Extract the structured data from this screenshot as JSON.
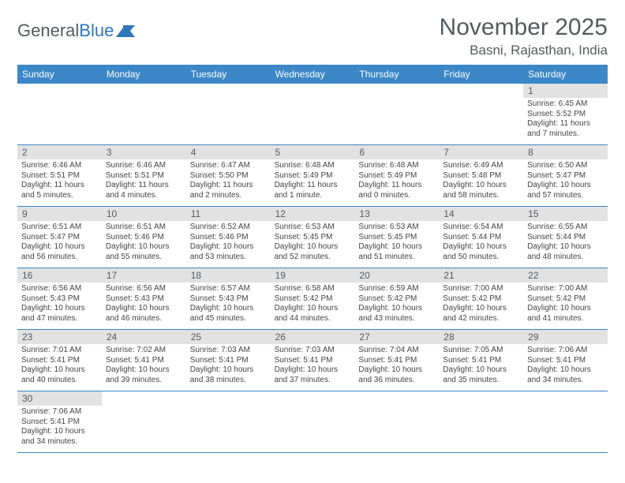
{
  "logo": {
    "text1": "General",
    "text2": "Blue"
  },
  "title": "November 2025",
  "location": "Basni, Rajasthan, India",
  "weekdays": [
    "Sunday",
    "Monday",
    "Tuesday",
    "Wednesday",
    "Thursday",
    "Friday",
    "Saturday"
  ],
  "colors": {
    "header_bg": "#3b87c8",
    "daynum_bg": "#e2e2e2",
    "text": "#555a5f"
  },
  "weeks": [
    [
      {
        "empty": true
      },
      {
        "empty": true
      },
      {
        "empty": true
      },
      {
        "empty": true
      },
      {
        "empty": true
      },
      {
        "empty": true
      },
      {
        "num": "1",
        "sunrise": "6:45 AM",
        "sunset": "5:52 PM",
        "daylight": "11 hours and 7 minutes."
      }
    ],
    [
      {
        "num": "2",
        "sunrise": "6:46 AM",
        "sunset": "5:51 PM",
        "daylight": "11 hours and 5 minutes."
      },
      {
        "num": "3",
        "sunrise": "6:46 AM",
        "sunset": "5:51 PM",
        "daylight": "11 hours and 4 minutes."
      },
      {
        "num": "4",
        "sunrise": "6:47 AM",
        "sunset": "5:50 PM",
        "daylight": "11 hours and 2 minutes."
      },
      {
        "num": "5",
        "sunrise": "6:48 AM",
        "sunset": "5:49 PM",
        "daylight": "11 hours and 1 minute."
      },
      {
        "num": "6",
        "sunrise": "6:48 AM",
        "sunset": "5:49 PM",
        "daylight": "11 hours and 0 minutes."
      },
      {
        "num": "7",
        "sunrise": "6:49 AM",
        "sunset": "5:48 PM",
        "daylight": "10 hours and 58 minutes."
      },
      {
        "num": "8",
        "sunrise": "6:50 AM",
        "sunset": "5:47 PM",
        "daylight": "10 hours and 57 minutes."
      }
    ],
    [
      {
        "num": "9",
        "sunrise": "6:51 AM",
        "sunset": "5:47 PM",
        "daylight": "10 hours and 56 minutes."
      },
      {
        "num": "10",
        "sunrise": "6:51 AM",
        "sunset": "5:46 PM",
        "daylight": "10 hours and 55 minutes."
      },
      {
        "num": "11",
        "sunrise": "6:52 AM",
        "sunset": "5:46 PM",
        "daylight": "10 hours and 53 minutes."
      },
      {
        "num": "12",
        "sunrise": "6:53 AM",
        "sunset": "5:45 PM",
        "daylight": "10 hours and 52 minutes."
      },
      {
        "num": "13",
        "sunrise": "6:53 AM",
        "sunset": "5:45 PM",
        "daylight": "10 hours and 51 minutes."
      },
      {
        "num": "14",
        "sunrise": "6:54 AM",
        "sunset": "5:44 PM",
        "daylight": "10 hours and 50 minutes."
      },
      {
        "num": "15",
        "sunrise": "6:55 AM",
        "sunset": "5:44 PM",
        "daylight": "10 hours and 48 minutes."
      }
    ],
    [
      {
        "num": "16",
        "sunrise": "6:56 AM",
        "sunset": "5:43 PM",
        "daylight": "10 hours and 47 minutes."
      },
      {
        "num": "17",
        "sunrise": "6:56 AM",
        "sunset": "5:43 PM",
        "daylight": "10 hours and 46 minutes."
      },
      {
        "num": "18",
        "sunrise": "6:57 AM",
        "sunset": "5:43 PM",
        "daylight": "10 hours and 45 minutes."
      },
      {
        "num": "19",
        "sunrise": "6:58 AM",
        "sunset": "5:42 PM",
        "daylight": "10 hours and 44 minutes."
      },
      {
        "num": "20",
        "sunrise": "6:59 AM",
        "sunset": "5:42 PM",
        "daylight": "10 hours and 43 minutes."
      },
      {
        "num": "21",
        "sunrise": "7:00 AM",
        "sunset": "5:42 PM",
        "daylight": "10 hours and 42 minutes."
      },
      {
        "num": "22",
        "sunrise": "7:00 AM",
        "sunset": "5:42 PM",
        "daylight": "10 hours and 41 minutes."
      }
    ],
    [
      {
        "num": "23",
        "sunrise": "7:01 AM",
        "sunset": "5:41 PM",
        "daylight": "10 hours and 40 minutes."
      },
      {
        "num": "24",
        "sunrise": "7:02 AM",
        "sunset": "5:41 PM",
        "daylight": "10 hours and 39 minutes."
      },
      {
        "num": "25",
        "sunrise": "7:03 AM",
        "sunset": "5:41 PM",
        "daylight": "10 hours and 38 minutes."
      },
      {
        "num": "26",
        "sunrise": "7:03 AM",
        "sunset": "5:41 PM",
        "daylight": "10 hours and 37 minutes."
      },
      {
        "num": "27",
        "sunrise": "7:04 AM",
        "sunset": "5:41 PM",
        "daylight": "10 hours and 36 minutes."
      },
      {
        "num": "28",
        "sunrise": "7:05 AM",
        "sunset": "5:41 PM",
        "daylight": "10 hours and 35 minutes."
      },
      {
        "num": "29",
        "sunrise": "7:06 AM",
        "sunset": "5:41 PM",
        "daylight": "10 hours and 34 minutes."
      }
    ],
    [
      {
        "num": "30",
        "sunrise": "7:06 AM",
        "sunset": "5:41 PM",
        "daylight": "10 hours and 34 minutes."
      },
      {
        "empty": true
      },
      {
        "empty": true
      },
      {
        "empty": true
      },
      {
        "empty": true
      },
      {
        "empty": true
      },
      {
        "empty": true
      }
    ]
  ],
  "labels": {
    "sunrise": "Sunrise:",
    "sunset": "Sunset:",
    "daylight": "Daylight:"
  }
}
